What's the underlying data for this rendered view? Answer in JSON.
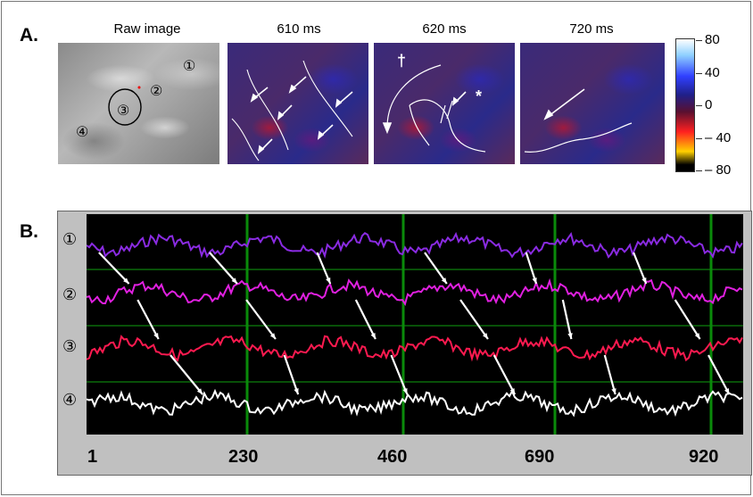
{
  "panel_a": {
    "label": "A.",
    "titles": [
      "Raw image",
      "610 ms",
      "620 ms",
      "720 ms"
    ],
    "raw_markers": [
      "①",
      "②",
      "③",
      "④"
    ],
    "map_620_marks": [
      "†",
      "*"
    ],
    "colorbar": {
      "ticks": [
        "80",
        "40",
        "0",
        "– 40",
        "– 80"
      ]
    }
  },
  "panel_b": {
    "label": "B.",
    "trace_labels": [
      "①",
      "②",
      "③",
      "④"
    ],
    "trace_colors": [
      "#8a2be2",
      "#e020e0",
      "#ff1a50",
      "#ffffff"
    ],
    "x_ticks": [
      "1",
      "230",
      "460",
      "690",
      "920"
    ]
  }
}
